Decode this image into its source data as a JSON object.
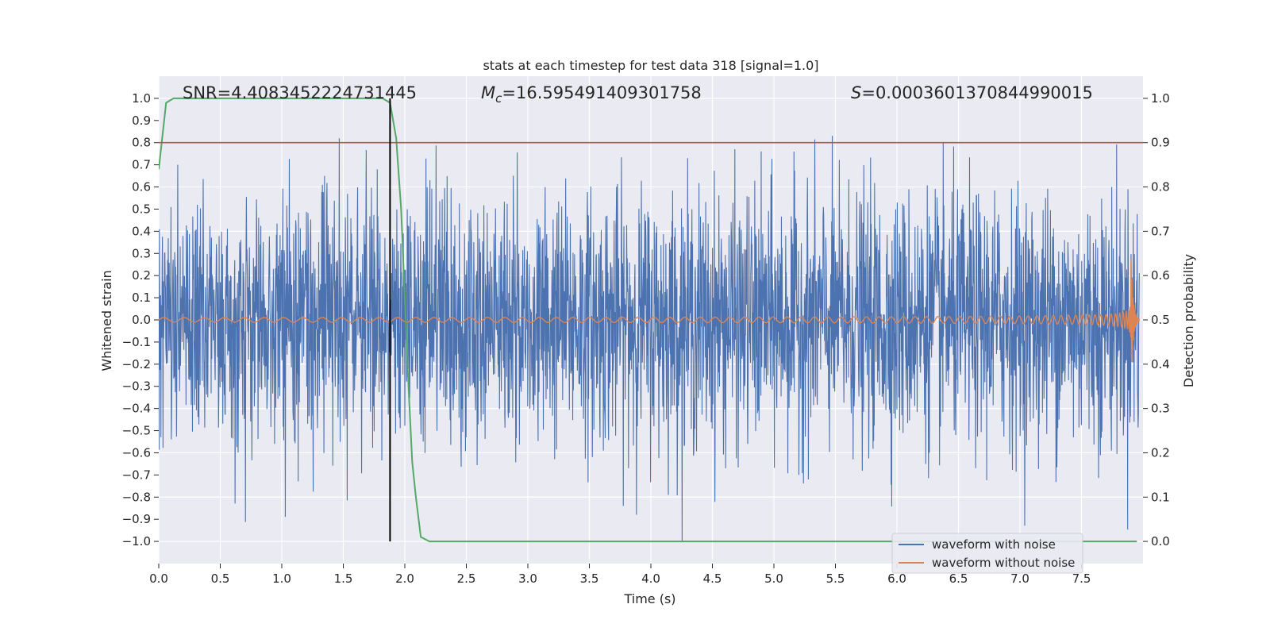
{
  "chart_data": {
    "type": "line",
    "title": "stats at each timestep for test data 318 [signal=1.0]",
    "xlabel": "Time (s)",
    "ylabel_left": "Whitened strain",
    "ylabel_right": "Detection probability",
    "xlim": [
      0.0,
      8.0
    ],
    "ylim_left": [
      -1.1,
      1.1
    ],
    "ylim_right": [
      -0.05,
      1.05
    ],
    "xticks": [
      "0.0",
      "0.5",
      "1.0",
      "1.5",
      "2.0",
      "2.5",
      "3.0",
      "3.5",
      "4.0",
      "4.5",
      "5.0",
      "5.5",
      "6.0",
      "6.5",
      "7.0",
      "7.5"
    ],
    "yticks_left": [
      "1.0",
      "0.9",
      "0.8",
      "0.7",
      "0.6",
      "0.5",
      "0.4",
      "0.3",
      "0.2",
      "0.1",
      "0.0",
      "−0.1",
      "−0.2",
      "−0.3",
      "−0.4",
      "−0.5",
      "−0.6",
      "−0.7",
      "−0.8",
      "−0.9",
      "−1.0"
    ],
    "yticks_right": [
      "1.0",
      "0.9",
      "0.8",
      "0.7",
      "0.6",
      "0.5",
      "0.4",
      "0.3",
      "0.2",
      "0.1",
      "0.0"
    ],
    "annotations": {
      "snr": "SNR=4.4083452224731445",
      "mc_symbol": "M",
      "mc_sub": "c",
      "mc_value": "=16.595491409301758",
      "s_symbol": "S",
      "s_value": "=0.0003601370844990015"
    },
    "grid": true,
    "legend_position": "lower-right",
    "series": [
      {
        "name": "waveform with noise",
        "axis": "left",
        "color": "#4c72b0",
        "description_range": [
          -1.0,
          1.0
        ],
        "envelope": {
          "x_start": 0.0,
          "x_end": 7.97,
          "typical_amplitude": 0.5,
          "max": 1.0,
          "min": -1.0
        }
      },
      {
        "name": "waveform without noise",
        "axis": "left",
        "color": "#dd8452",
        "chirp": {
          "x_start": 0.0,
          "x_end": 7.97,
          "merger_time": 7.9,
          "peak_amplitude": 0.35,
          "start_amplitude": 0.01
        }
      },
      {
        "name": "detection probability",
        "axis": "right",
        "color": "#55a868",
        "x": [
          0.0,
          0.06,
          0.12,
          0.2,
          0.5,
          1.0,
          1.5,
          1.75,
          1.82,
          1.88,
          1.93,
          1.97,
          2.0,
          2.03,
          2.06,
          2.09,
          2.13,
          2.2,
          2.5,
          3.0,
          4.0,
          5.0,
          6.0,
          7.0,
          7.95
        ],
        "y": [
          0.84,
          0.99,
          1.0,
          1.0,
          1.0,
          1.0,
          1.0,
          1.0,
          1.0,
          0.99,
          0.91,
          0.75,
          0.55,
          0.35,
          0.18,
          0.1,
          0.01,
          0.0,
          0.0,
          0.0,
          0.0,
          0.0,
          0.0,
          0.0,
          0.0
        ]
      },
      {
        "name": "threshold",
        "axis": "right",
        "color": "#c44e52",
        "y": 0.9
      },
      {
        "name": "detection time",
        "axis": "x",
        "color": "#000000",
        "x": 1.88
      }
    ],
    "legend": [
      {
        "label": "waveform with noise",
        "color": "#4c72b0"
      },
      {
        "label": "waveform without noise",
        "color": "#dd8452"
      }
    ]
  }
}
